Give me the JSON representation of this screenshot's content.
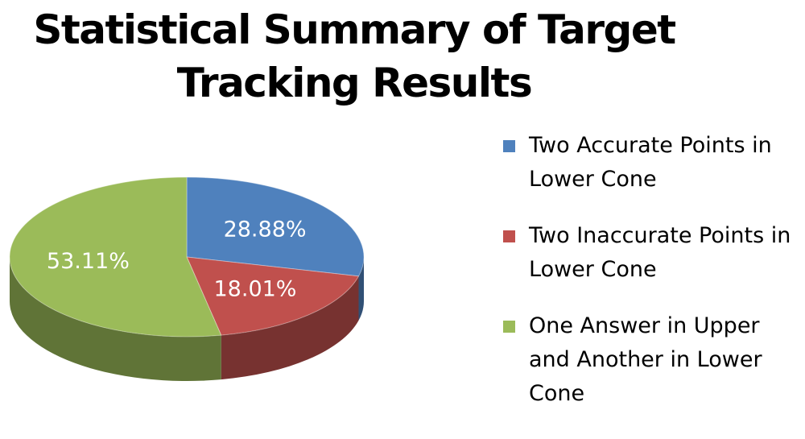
{
  "chart_data": {
    "type": "pie",
    "title": "Statistical Summary of Target Tracking Results",
    "slices": [
      {
        "label": "Two Accurate Points in Lower Cone",
        "value": 28.88,
        "value_label": "28.88%",
        "color": "#4F81BD"
      },
      {
        "label": "Two Inaccurate Points in Lower Cone",
        "value": 18.01,
        "value_label": "18.01%",
        "color": "#C0504D"
      },
      {
        "label": "One Answer in Upper and Another in Lower Cone",
        "value": 53.11,
        "value_label": "53.11%",
        "color": "#9BBB59"
      }
    ],
    "style": "3d",
    "legend_position": "right"
  }
}
